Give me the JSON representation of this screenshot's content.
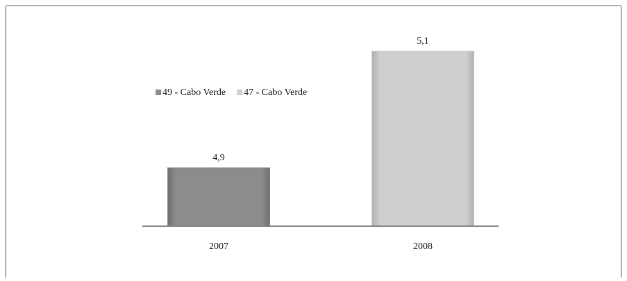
{
  "chart_data": {
    "type": "bar",
    "categories": [
      "2007",
      "2008"
    ],
    "series": [
      {
        "name": "49 - Cabo Verde",
        "color": "#8c8c8c",
        "values": [
          4.9,
          null
        ],
        "value_labels": [
          "4,9",
          null
        ]
      },
      {
        "name": "47 - Cabo Verde",
        "color": "#cfcfcf",
        "values": [
          null,
          5.1
        ],
        "value_labels": [
          null,
          "5,1"
        ]
      }
    ],
    "ylim": [
      4.8,
      5.14
    ],
    "legend": "top-left"
  }
}
